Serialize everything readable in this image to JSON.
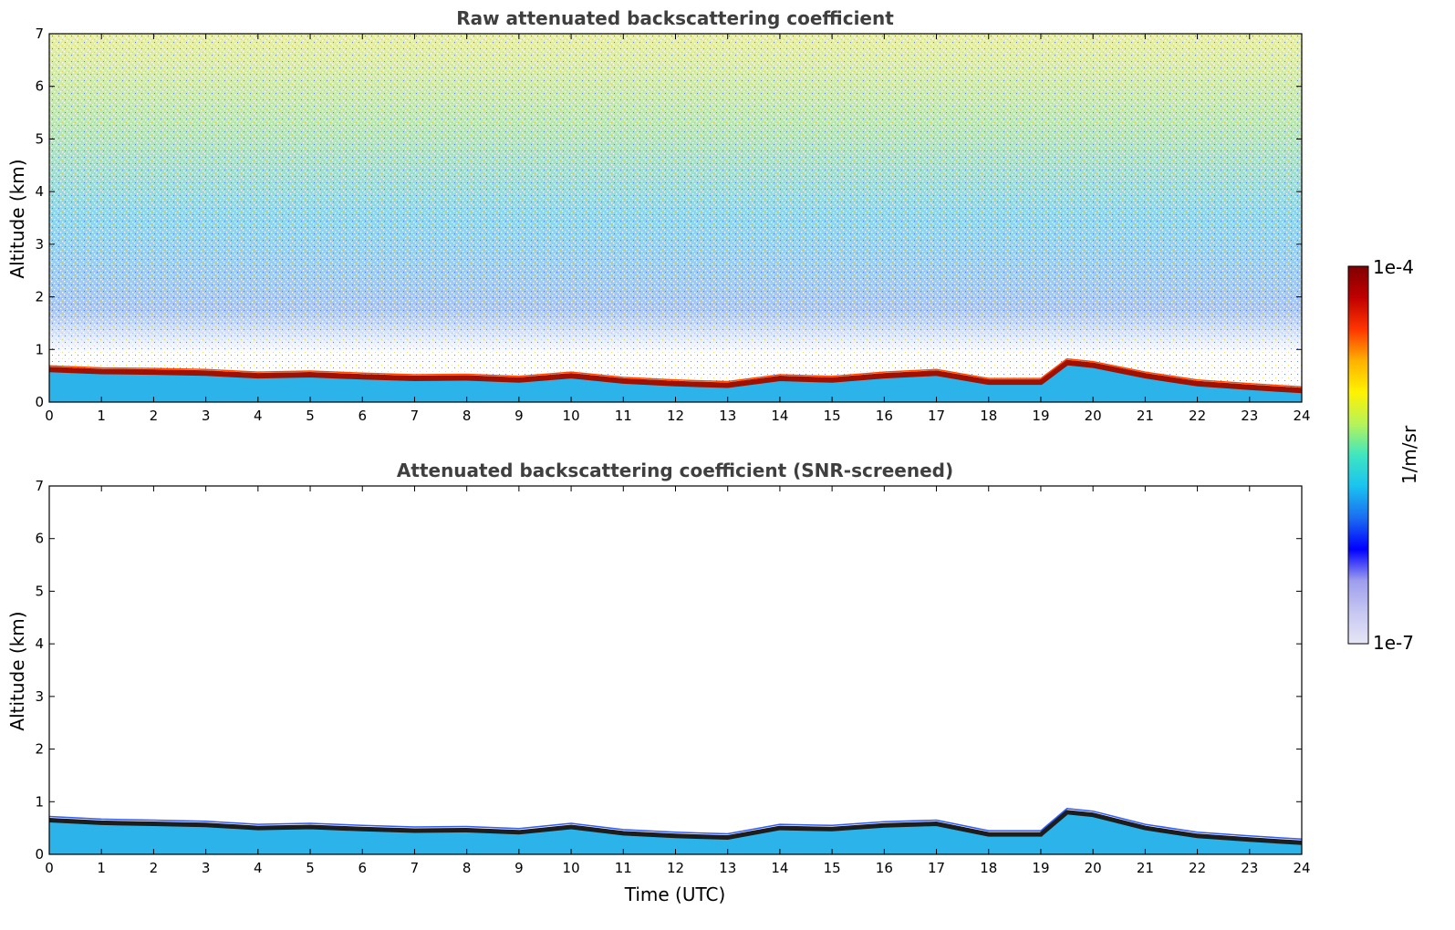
{
  "chart_data": [
    {
      "type": "heatmap",
      "title": "Raw attenuated backscattering coefficient",
      "xlabel": "",
      "ylabel": "Altitude (km)",
      "xlim": [
        0,
        24
      ],
      "ylim": [
        0,
        7
      ],
      "xticks": [
        0,
        1,
        2,
        3,
        4,
        5,
        6,
        7,
        8,
        9,
        10,
        11,
        12,
        13,
        14,
        15,
        16,
        17,
        18,
        19,
        20,
        21,
        22,
        23,
        24
      ],
      "yticks": [
        0,
        1,
        2,
        3,
        4,
        5,
        6,
        7
      ],
      "grid": false,
      "noise": "high",
      "boundary_layer_top_km": {
        "x": [
          0,
          1,
          2,
          3,
          4,
          5,
          6,
          7,
          8,
          9,
          10,
          11,
          12,
          13,
          14,
          15,
          16,
          17,
          18,
          19,
          19.5,
          20,
          21,
          22,
          23,
          24
        ],
        "y": [
          0.62,
          0.58,
          0.57,
          0.55,
          0.5,
          0.52,
          0.48,
          0.45,
          0.46,
          0.42,
          0.5,
          0.4,
          0.35,
          0.32,
          0.45,
          0.42,
          0.5,
          0.55,
          0.38,
          0.38,
          0.75,
          0.7,
          0.5,
          0.35,
          0.28,
          0.22
        ]
      }
    },
    {
      "type": "heatmap",
      "title": "Attenuated backscattering coefficient (SNR-screened)",
      "xlabel": "Time (UTC)",
      "ylabel": "Altitude (km)",
      "xlim": [
        0,
        24
      ],
      "ylim": [
        0,
        7
      ],
      "xticks": [
        0,
        1,
        2,
        3,
        4,
        5,
        6,
        7,
        8,
        9,
        10,
        11,
        12,
        13,
        14,
        15,
        16,
        17,
        18,
        19,
        20,
        21,
        22,
        23,
        24
      ],
      "yticks": [
        0,
        1,
        2,
        3,
        4,
        5,
        6,
        7
      ],
      "grid": false,
      "noise": "screened",
      "boundary_layer_top_km": {
        "x": [
          0,
          1,
          2,
          3,
          4,
          5,
          6,
          7,
          8,
          9,
          10,
          11,
          12,
          13,
          14,
          15,
          16,
          17,
          18,
          19,
          19.5,
          20,
          21,
          22,
          23,
          24
        ],
        "y": [
          0.65,
          0.6,
          0.58,
          0.56,
          0.5,
          0.52,
          0.48,
          0.45,
          0.46,
          0.42,
          0.52,
          0.4,
          0.35,
          0.32,
          0.5,
          0.48,
          0.55,
          0.58,
          0.38,
          0.38,
          0.8,
          0.75,
          0.5,
          0.35,
          0.28,
          0.22
        ]
      }
    }
  ],
  "colorbar": {
    "label": "1/m/sr",
    "max_label": "1e-4",
    "min_label": "1e-7",
    "scale": "log",
    "range": [
      1e-07,
      0.0001
    ],
    "colormap": "jet",
    "colors": [
      "#e6e6f7",
      "#c7c7f2",
      "#9d9dee",
      "#0000ff",
      "#1a6cf0",
      "#19c3f0",
      "#3fe6c0",
      "#b8f35a",
      "#fff200",
      "#ffb000",
      "#ff3500",
      "#c00000",
      "#800000"
    ]
  }
}
